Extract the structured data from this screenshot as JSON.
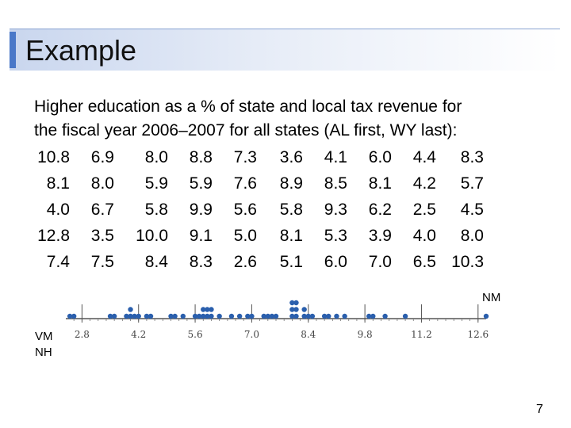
{
  "slide": {
    "title": "Example",
    "description_line1": "Higher education as a % of state and local tax revenue for",
    "description_line2": "the fiscal year 2006–2007 for all states (AL first, WY last):",
    "page_number": "7"
  },
  "table": {
    "rows": [
      [
        "10.8",
        "6.9",
        "8.0",
        "8.8",
        "7.3",
        "3.6",
        "4.1",
        "6.0",
        "4.4",
        "8.3"
      ],
      [
        "8.1",
        "8.0",
        "5.9",
        "5.9",
        "7.6",
        "8.9",
        "8.5",
        "8.1",
        "4.2",
        "5.7"
      ],
      [
        "4.0",
        "6.7",
        "5.8",
        "9.9",
        "5.6",
        "5.8",
        "9.3",
        "6.2",
        "2.5",
        "4.5"
      ],
      [
        "12.8",
        "3.5",
        "10.0",
        "9.1",
        "5.0",
        "8.1",
        "5.3",
        "3.9",
        "4.0",
        "8.0"
      ],
      [
        "7.4",
        "7.5",
        "8.4",
        "8.3",
        "2.6",
        "5.1",
        "6.0",
        "7.0",
        "6.5",
        "10.3"
      ]
    ]
  },
  "dotplot": {
    "annotations": {
      "right": "NM",
      "left_line1": "VM",
      "left_line2": "NH"
    },
    "dot_color": "#2a5fad",
    "values": [
      10.8,
      6.9,
      8.0,
      8.8,
      7.3,
      3.6,
      4.1,
      6.0,
      4.4,
      8.3,
      8.1,
      8.0,
      5.9,
      5.9,
      7.6,
      8.9,
      8.5,
      8.1,
      4.2,
      5.7,
      4.0,
      6.7,
      5.8,
      9.9,
      5.6,
      5.8,
      9.3,
      6.2,
      2.5,
      4.5,
      12.8,
      3.5,
      10.0,
      9.1,
      5.0,
      8.1,
      5.3,
      3.9,
      4.0,
      8.0,
      7.4,
      7.5,
      8.4,
      8.3,
      2.6,
      5.1,
      6.0,
      7.0,
      6.5,
      10.3
    ],
    "axis_min": 2.4,
    "axis_max": 12.8,
    "tick_labels": [
      "2.8",
      "4.2",
      "5.6",
      "7.0",
      "8.4",
      "9.8",
      "11.2",
      "12.6"
    ]
  }
}
